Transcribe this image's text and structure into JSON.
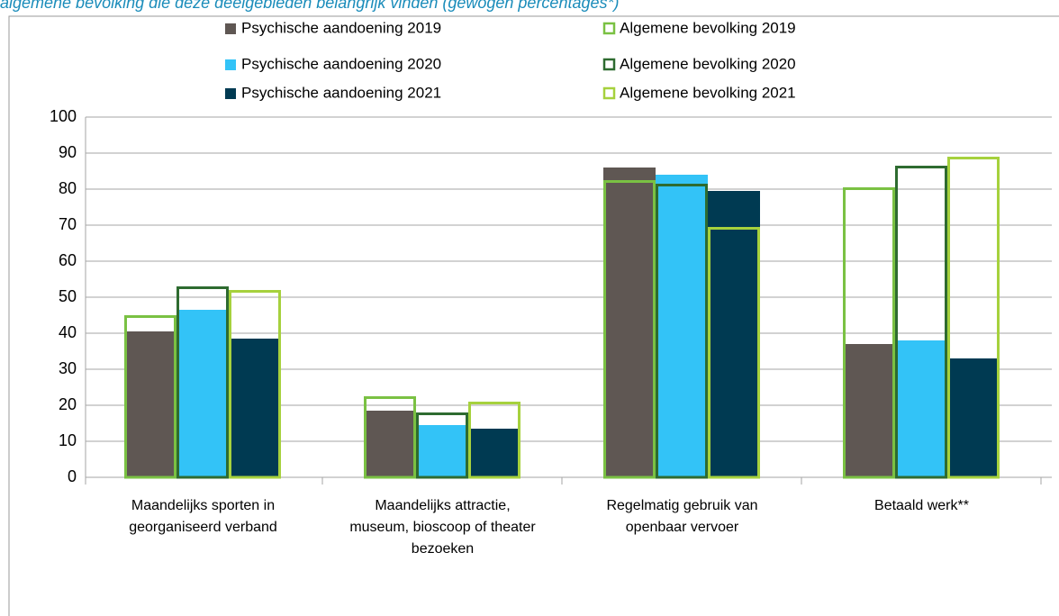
{
  "chart_data": {
    "type": "bar",
    "title": "algemene bevolking die deze deelgebieden belangrijk vinden (gewogen percentages*)",
    "categories": [
      "Maandelijks sporten in georganiseerd verband",
      "Maandelijks attractie, museum, bioscoop of theater bezoeken",
      "Regelmatig gebruik van openbaar vervoer",
      "Betaald werk**"
    ],
    "series": [
      {
        "name": "Psychische aandoening 2019",
        "color": "#5f5753",
        "style": "filled",
        "values": [
          40.5,
          18.5,
          86,
          37
        ]
      },
      {
        "name": "Psychische aandoening 2020",
        "color": "#33c3f7",
        "style": "filled",
        "values": [
          46.5,
          14.5,
          84,
          38
        ]
      },
      {
        "name": "Psychische aandoening 2021",
        "color": "#003a52",
        "style": "filled",
        "values": [
          38.5,
          13.5,
          79.5,
          33
        ]
      },
      {
        "name": "Algemene bevolking 2019",
        "color": "#7ac143",
        "style": "outline",
        "values": [
          45,
          22.5,
          82.5,
          80.5
        ]
      },
      {
        "name": "Algemene bevolking 2020",
        "color": "#2e6b30",
        "style": "outline",
        "values": [
          53,
          18,
          81.5,
          86.5
        ]
      },
      {
        "name": "Algemene bevolking 2021",
        "color": "#a6d13d",
        "style": "outline",
        "values": [
          52,
          21,
          69.5,
          89
        ]
      }
    ],
    "ylim": [
      0,
      100
    ],
    "yticks": [
      0,
      10,
      20,
      30,
      40,
      50,
      60,
      70,
      80,
      90,
      100
    ],
    "grid": true
  }
}
